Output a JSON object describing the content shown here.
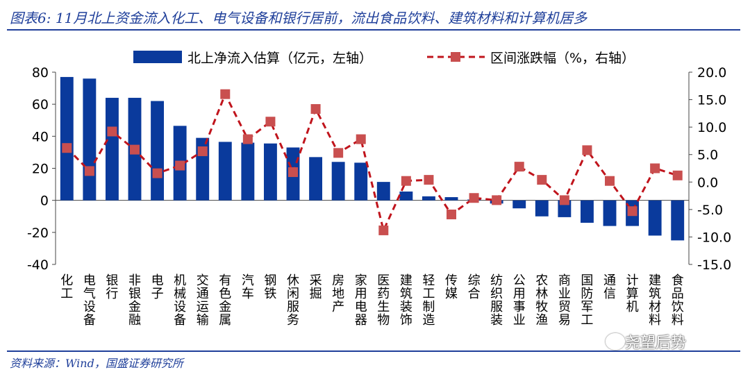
{
  "title": "图表6:  11月北上资金流入化工、电气设备和银行居前，流出食品饮料、建筑材料和计算机居多",
  "source": "资料来源：Wind，国盛证券研究所",
  "watermark": "尧望后势",
  "colors": {
    "bar": "#0a3a9c",
    "line": "#c0141c",
    "marker": "#c94f4f",
    "accent": "#1f3f9a"
  },
  "chart_data": {
    "type": "bar",
    "categories": [
      "化工",
      "电气设备",
      "银行",
      "非银金融",
      "电子",
      "机械设备",
      "交通运输",
      "有色金属",
      "汽车",
      "钢铁",
      "休闲服务",
      "采掘",
      "房地产",
      "家用电器",
      "医药生物",
      "建筑装饰",
      "轻工制造",
      "传媒",
      "综合",
      "纺织服装",
      "公用事业",
      "农林牧渔",
      "商业贸易",
      "国防军工",
      "通信",
      "计算机",
      "建筑材料",
      "食品饮料"
    ],
    "series": [
      {
        "name": "北上净流入估算（亿元，左轴）",
        "type": "bar",
        "axis": "left",
        "values": [
          77,
          76,
          64,
          64,
          62,
          46.5,
          39,
          36.5,
          36,
          35.5,
          33,
          27,
          24,
          23.5,
          11.5,
          5.5,
          2.5,
          2,
          0.5,
          -2,
          -5,
          -10,
          -10.5,
          -14,
          -16,
          -16,
          -22,
          -25
        ]
      },
      {
        "name": "区间涨跌幅（%，右轴）",
        "type": "line",
        "axis": "right",
        "values": [
          6.2,
          2.0,
          9.2,
          5.9,
          1.6,
          3.0,
          5.6,
          16.0,
          7.8,
          11.0,
          1.8,
          13.3,
          5.3,
          7.8,
          -8.8,
          0.2,
          0.4,
          -5.9,
          -2.9,
          -3.3,
          2.8,
          0.4,
          -3.3,
          5.8,
          0.2,
          -5.3,
          2.5,
          1.2
        ]
      }
    ],
    "ylim_left": [
      -40,
      80
    ],
    "yticks_left": [
      "80",
      "60",
      "40",
      "20",
      "0",
      "-20",
      "-40"
    ],
    "ylim_right": [
      -15,
      20
    ],
    "yticks_right": [
      "20.0",
      "15.0",
      "10.0",
      "5.0",
      "0.0",
      "-5.0",
      "-10.0",
      "-15.0"
    ],
    "legend_position": "top",
    "grid": false
  }
}
